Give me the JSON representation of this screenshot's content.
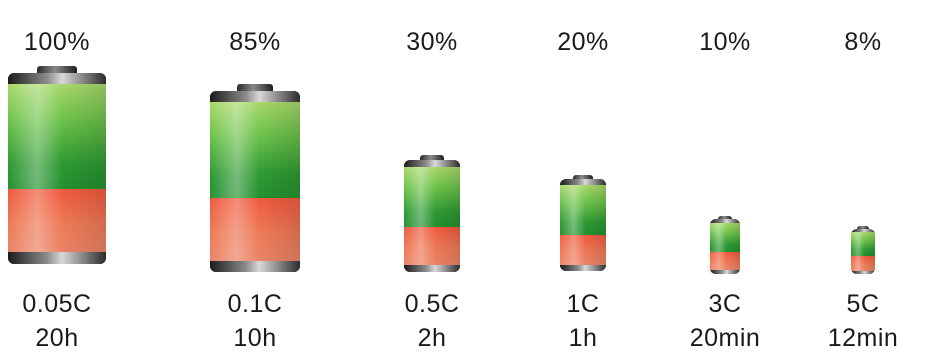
{
  "items": [
    {
      "capacity": "100%",
      "rate": "0.05C",
      "time": "20h",
      "green_fraction": 0.55
    },
    {
      "capacity": "85%",
      "rate": "0.1C",
      "time": "10h",
      "green_fraction": 0.55
    },
    {
      "capacity": "30%",
      "rate": "0.5C",
      "time": "2h",
      "green_fraction": 0.55
    },
    {
      "capacity": "20%",
      "rate": "1C",
      "time": "1h",
      "green_fraction": 0.55
    },
    {
      "capacity": "10%",
      "rate": "3C",
      "time": "20min",
      "green_fraction": 0.55
    },
    {
      "capacity": "8%",
      "rate": "5C",
      "time": "12min",
      "green_fraction": 0.55
    }
  ],
  "colors": {
    "charge_green": "#3ca83a",
    "charge_red": "#ef6a4c",
    "text": "#1a1a1a"
  }
}
